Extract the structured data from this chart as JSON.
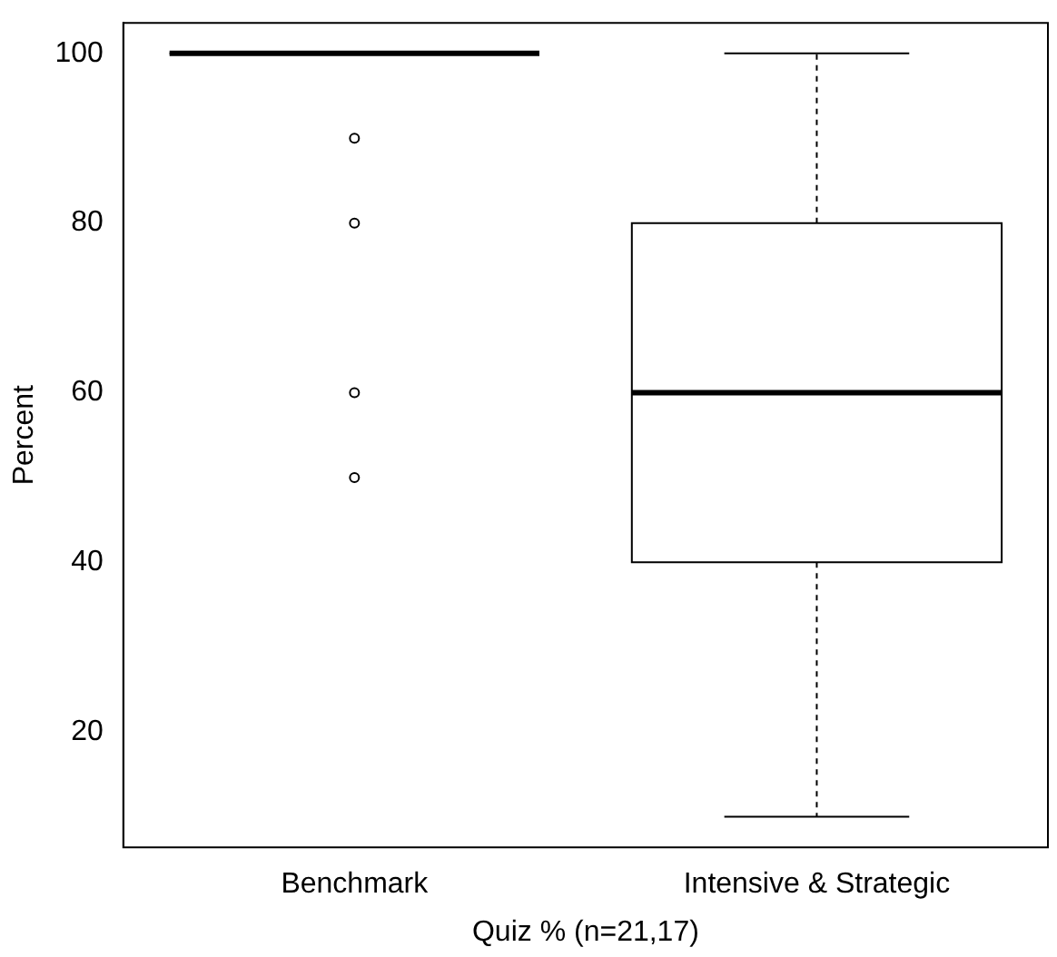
{
  "chart_data": {
    "type": "box",
    "xlabel": "Quiz % (n=21,17)",
    "ylabel": "Percent",
    "categories": [
      "Benchmark",
      "Intensive & Strategic"
    ],
    "boxes": [
      {
        "low": 100,
        "q1": 100,
        "median": 100,
        "q3": 100,
        "high": 100,
        "outliers": [
          90,
          80,
          60,
          50
        ]
      },
      {
        "low": 10,
        "q1": 40,
        "median": 60,
        "q3": 80,
        "high": 100
      }
    ],
    "ylim": [
      6.4,
      103.6
    ],
    "yticks": [
      20,
      40,
      60,
      80,
      100
    ]
  }
}
